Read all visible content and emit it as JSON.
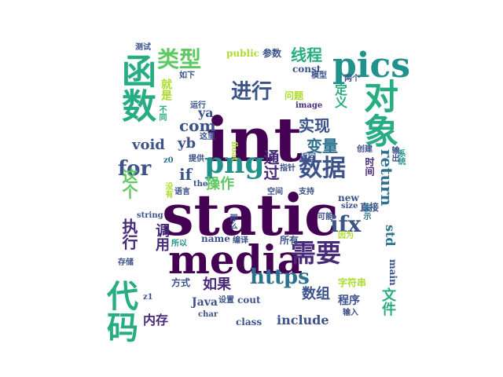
{
  "word_cloud": {
    "colors": {
      "dark_purple": "#440154",
      "purple": "#472a7a",
      "indigo": "#3b528b",
      "blue": "#2c728e",
      "teal": "#21918c",
      "green": "#27ad81",
      "light_green": "#5ec962",
      "lime": "#addc30",
      "yellow": "#fde725"
    },
    "words": [
      {
        "text": "int"
      },
      {
        "text": "static"
      },
      {
        "text": "media"
      },
      {
        "text": "pics"
      },
      {
        "text": "函数"
      },
      {
        "text": "对象"
      },
      {
        "text": "数据"
      },
      {
        "text": "需要"
      },
      {
        "text": "代码"
      },
      {
        "text": "类型"
      },
      {
        "text": "进行"
      },
      {
        "text": "png"
      },
      {
        "text": "https"
      },
      {
        "text": "for"
      },
      {
        "text": "ifx"
      },
      {
        "text": "void"
      },
      {
        "text": "com"
      },
      {
        "text": "return"
      },
      {
        "text": "线程"
      },
      {
        "text": "实现"
      },
      {
        "text": "变量"
      },
      {
        "text": "通过"
      },
      {
        "text": "执行"
      },
      {
        "text": "这个"
      },
      {
        "text": "如果"
      },
      {
        "text": "数组"
      },
      {
        "text": "include"
      },
      {
        "text": "内存"
      },
      {
        "text": "文件"
      },
      {
        "text": "yb"
      },
      {
        "text": "ya"
      },
      {
        "text": "操作"
      },
      {
        "text": "std"
      },
      {
        "text": "调用"
      },
      {
        "text": "定义"
      },
      {
        "text": "if"
      },
      {
        "text": "public"
      },
      {
        "text": "参数"
      },
      {
        "text": "const"
      },
      {
        "text": "测试"
      },
      {
        "text": "就是"
      },
      {
        "text": "不同"
      },
      {
        "text": "如下"
      },
      {
        "text": "运行"
      },
      {
        "text": "问题"
      },
      {
        "text": "image"
      },
      {
        "text": "模型"
      },
      {
        "text": "两个"
      },
      {
        "text": "创建"
      },
      {
        "text": "时间"
      },
      {
        "text": "输出"
      },
      {
        "text": "系统"
      },
      {
        "text": "float"
      },
      {
        "text": "这里"
      },
      {
        "text": "提供"
      },
      {
        "text": "the"
      },
      {
        "text": "z0"
      },
      {
        "text": "没有"
      },
      {
        "text": "语言"
      },
      {
        "text": "指针"
      },
      {
        "text": "返回"
      },
      {
        "text": "空间"
      },
      {
        "text": "支持"
      },
      {
        "text": "new"
      },
      {
        "text": "size"
      },
      {
        "text": "直接"
      },
      {
        "text": "表示"
      },
      {
        "text": "可能"
      },
      {
        "text": "string"
      },
      {
        "text": "那么"
      },
      {
        "text": "所以"
      },
      {
        "text": "name"
      },
      {
        "text": "编译"
      },
      {
        "text": "所有"
      },
      {
        "text": "因为"
      },
      {
        "text": "存储"
      },
      {
        "text": "方式"
      },
      {
        "text": "main"
      },
      {
        "text": "字符串"
      },
      {
        "text": "z1"
      },
      {
        "text": "Java"
      },
      {
        "text": "设置"
      },
      {
        "text": "cout"
      },
      {
        "text": "程序"
      },
      {
        "text": "char"
      },
      {
        "text": "class"
      },
      {
        "text": "输入"
      }
    ]
  }
}
